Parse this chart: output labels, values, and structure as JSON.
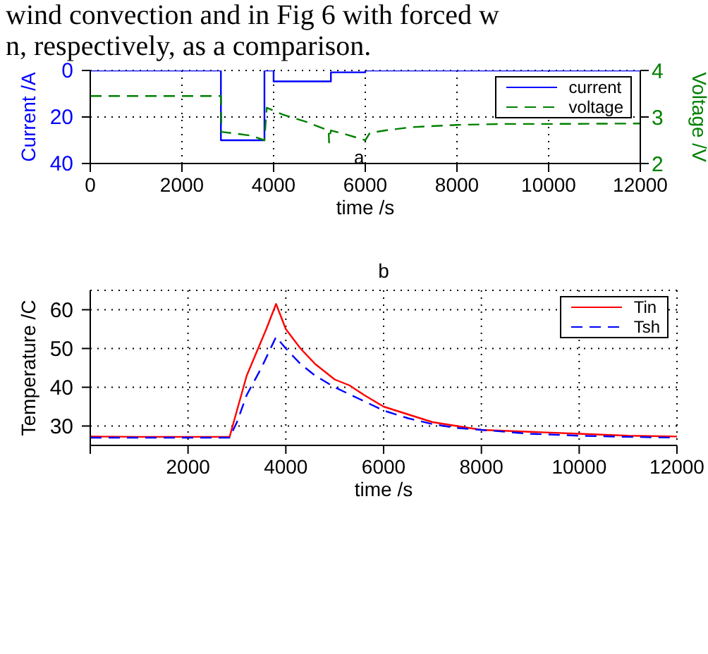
{
  "chart_data": [
    {
      "type": "line",
      "annotations": [
        "wind convection and in Fig 6 with forced w",
        "n, respectively, as a comparison.",
        "a"
      ],
      "xlabel": "time /s",
      "ylabel": "Current /A",
      "y2label": "Voltage /V",
      "xlim": [
        0,
        12000
      ],
      "xticks": [
        0,
        2000,
        4000,
        6000,
        8000,
        10000,
        12000
      ],
      "ylim": [
        40,
        0
      ],
      "yticks": [
        0,
        20,
        40
      ],
      "y2lim": [
        2,
        4
      ],
      "y2ticks": [
        2,
        3,
        4
      ],
      "grid": true,
      "legend": "top right",
      "marker": "none",
      "series": [
        {
          "name": "current",
          "color": "#0000ff",
          "line_style": "solid",
          "x": [
            0,
            2850,
            2850,
            3800,
            3800,
            4000,
            4000,
            5250,
            5250,
            6000,
            6000,
            12000
          ],
          "values": [
            0,
            0,
            30,
            30,
            0,
            0,
            4.7,
            4.7,
            0.8,
            0.8,
            0,
            0
          ]
        },
        {
          "name": "voltage",
          "color": "#008000",
          "line_style": "dashed",
          "axis": "y2",
          "x": [
            0,
            2850,
            2860,
            3200,
            3500,
            3800,
            3850,
            4200,
            4700,
            5200,
            5210,
            5250,
            5600,
            6000,
            6100,
            6500,
            7000,
            8000,
            9000,
            10000,
            12000
          ],
          "values": [
            3.45,
            3.45,
            2.68,
            2.64,
            2.6,
            2.5,
            3.2,
            3.05,
            2.9,
            2.71,
            2.45,
            2.71,
            2.62,
            2.5,
            2.66,
            2.72,
            2.78,
            2.83,
            2.85,
            2.85,
            2.86
          ]
        }
      ]
    },
    {
      "type": "line",
      "title": "b",
      "xlabel": "time /s",
      "ylabel": "Temperature /C",
      "xlim": [
        0,
        12000
      ],
      "xticks": [
        {
          "value": 0,
          "label": null
        },
        2000,
        4000,
        6000,
        8000,
        10000,
        12000
      ],
      "ylim": [
        25,
        65
      ],
      "yticks": [
        30,
        40,
        50,
        60
      ],
      "grid": true,
      "legend": "top right",
      "marker": "none",
      "series": [
        {
          "name": "Tin",
          "color": "#ff0000",
          "line_style": "solid",
          "x": [
            0,
            1000,
            2000,
            2850,
            3000,
            3200,
            3400,
            3600,
            3800,
            4000,
            4300,
            4600,
            5000,
            5300,
            5600,
            6000,
            6500,
            7000,
            7500,
            8000,
            9000,
            10000,
            11000,
            12000
          ],
          "values": [
            27.3,
            27.2,
            27.2,
            27.2,
            34,
            43,
            49,
            55,
            61.5,
            55,
            50,
            46,
            42,
            40.5,
            38,
            35,
            33,
            31,
            30,
            29,
            28.5,
            28,
            27.5,
            27.3
          ]
        },
        {
          "name": "Tsh",
          "color": "#0000ff",
          "line_style": "dashed",
          "x": [
            0,
            1000,
            2000,
            2850,
            3000,
            3200,
            3500,
            3800,
            4000,
            4300,
            4600,
            5000,
            5500,
            6000,
            6500,
            7000,
            7500,
            8000,
            9000,
            10000,
            11000,
            12000
          ],
          "values": [
            27,
            27,
            27,
            27,
            31,
            38,
            45,
            53,
            50,
            46,
            43,
            40,
            37,
            34,
            32,
            30.5,
            29.5,
            29,
            28,
            27.5,
            27.2,
            27
          ]
        }
      ]
    }
  ]
}
